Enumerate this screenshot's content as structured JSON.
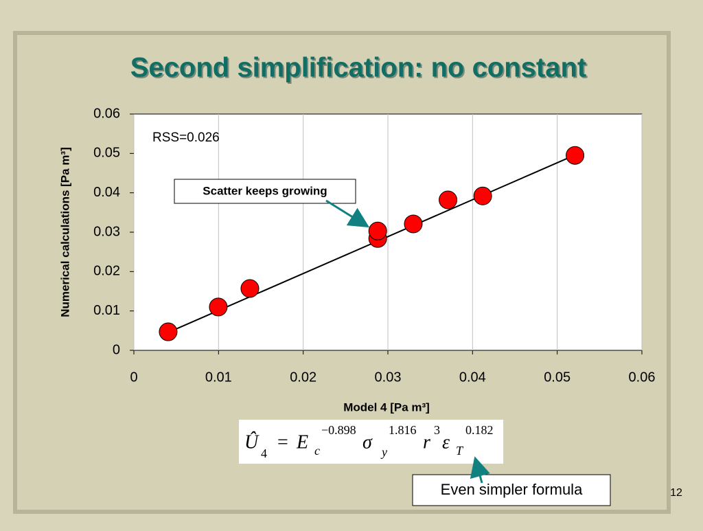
{
  "title": "Second simplification: no constant",
  "page_number": "12",
  "chart_data": {
    "type": "scatter",
    "xlabel": "Model 4 [Pa m³]",
    "ylabel": "Numerical calculations [Pa m³]",
    "xlim": [
      0,
      0.06
    ],
    "ylim": [
      0,
      0.06
    ],
    "xticks": [
      0,
      0.01,
      0.02,
      0.03,
      0.04,
      0.05,
      0.06
    ],
    "yticks": [
      0,
      0.01,
      0.02,
      0.03,
      0.04,
      0.05,
      0.06
    ],
    "grid": "x",
    "series": [
      {
        "color": "#ff0000",
        "x": [
          0.00405,
          0.00997,
          0.0137,
          0.0288,
          0.0288,
          0.033,
          0.0371,
          0.0412,
          0.0521
        ],
        "values": [
          0.0047,
          0.011,
          0.0157,
          0.0284,
          0.0303,
          0.0321,
          0.0382,
          0.0392,
          0.0495
        ]
      }
    ],
    "trendline": {
      "color": "#000000",
      "x": [
        0.004,
        0.052
      ],
      "values": [
        0.0045,
        0.0495
      ]
    },
    "annotations": [
      "RSS=0.026",
      "Scatter keeps growing",
      "Even simpler formula"
    ]
  },
  "formula": [
    "Û",
    "4",
    "=",
    "E",
    "c",
    "−0.898",
    "σ",
    "y",
    "1.816",
    "r",
    "3",
    "ε",
    "T",
    "0.182"
  ]
}
